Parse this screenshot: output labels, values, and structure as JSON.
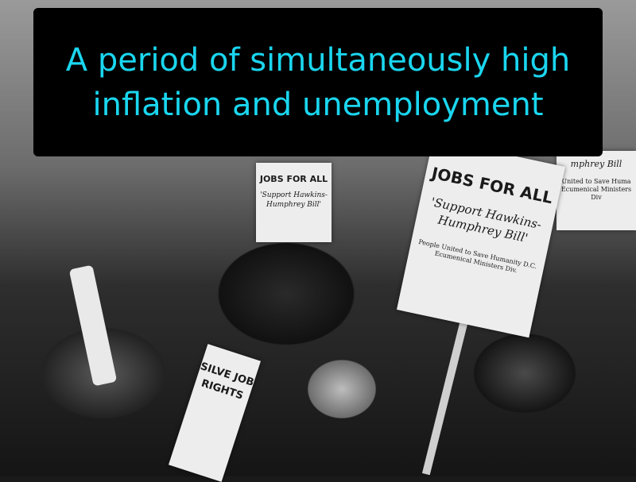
{
  "caption": {
    "text": "A period of simultaneously high inflation and unemployment",
    "color": "#1ad6ef",
    "background": "#000000"
  },
  "photo": {
    "signs": [
      {
        "heading": "JOBS FOR ALL",
        "subtext": "'Support Hawkins-Humphrey Bill'",
        "footer": "People United to Save Humanity D.C. Ecumenical Ministers Div."
      },
      {
        "heading": "JOBS FOR ALL",
        "subtext": "'Support Hawkins-Humphrey Bill'"
      },
      {
        "subtext": "mphrey Bill",
        "footer": "United to Save Huma Ecumenical Ministers Div"
      },
      {
        "heading": "SILVE JOB RIGHTS"
      }
    ]
  }
}
